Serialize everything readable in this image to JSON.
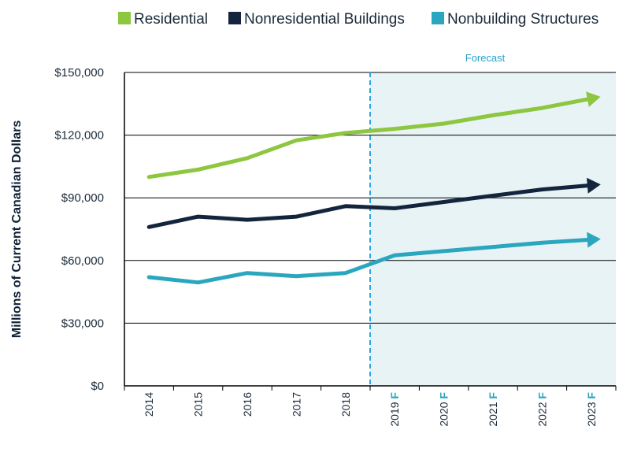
{
  "chart_data": {
    "type": "line",
    "title": "",
    "xlabel": "",
    "ylabel": "Millions of Current Canadian Dollars",
    "ylim": [
      0,
      150000
    ],
    "yticks": [
      0,
      30000,
      60000,
      90000,
      120000,
      150000
    ],
    "ytick_labels": [
      "$0",
      "$30,000",
      "$60,000",
      "$90,000",
      "$120,000",
      "$150,000"
    ],
    "categories": [
      "2014",
      "2015",
      "2016",
      "2017",
      "2018",
      "2019",
      "2020",
      "2021",
      "2022",
      "2023"
    ],
    "category_suffix": [
      "",
      "",
      "",
      "",
      "",
      "F",
      "F",
      "F",
      "F",
      "F"
    ],
    "forecast_label": "Forecast",
    "forecast_start_index": 5,
    "legend_position": "top",
    "grid": "horizontal",
    "series": [
      {
        "name": "Residential",
        "color": "#8dc63f",
        "values": [
          100000,
          103500,
          109000,
          117500,
          121000,
          123000,
          125500,
          129500,
          133000,
          137500
        ]
      },
      {
        "name": "Nonresidential Buildings",
        "color": "#13253d",
        "values": [
          76000,
          81000,
          79500,
          81000,
          86000,
          85000,
          88000,
          91000,
          94000,
          96000
        ]
      },
      {
        "name": "Nonbuilding Structures",
        "color": "#2aa6bf",
        "values": [
          52000,
          49500,
          54000,
          52500,
          54000,
          62500,
          64500,
          66500,
          68500,
          70000
        ]
      }
    ],
    "colors": {
      "forecast_shade": "#e8f3f5",
      "forecast_line": "#2aa6e0",
      "axis": "#000000"
    }
  }
}
